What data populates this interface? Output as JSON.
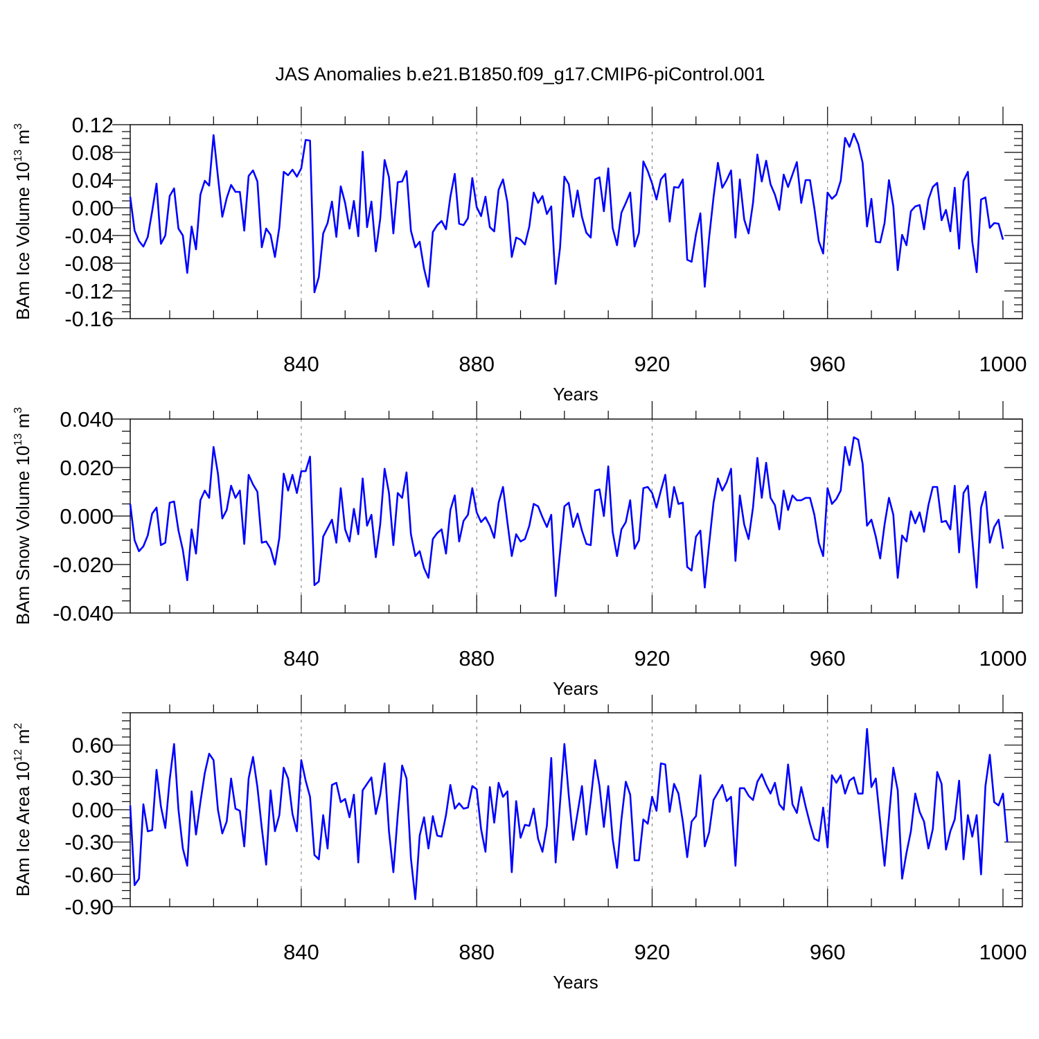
{
  "title": "JAS Anomalies b.e21.B1850.f09_g17.CMIP6-piControl.001",
  "line_color": "#0000ff",
  "grid_color": "#777777",
  "chart_data": [
    {
      "type": "line",
      "ylabel": {
        "main": "BAm Ice Volume 10",
        "exp": "13",
        "unit": " m",
        "unit_exp": "3"
      },
      "xlabel": "Years",
      "xlim": [
        801,
        1000
      ],
      "ylim": [
        -0.16,
        0.12
      ],
      "yticks": [
        -0.16,
        -0.12,
        -0.08,
        -0.04,
        0.0,
        0.04,
        0.08,
        0.12
      ],
      "ytick_labels": [
        "-0.16",
        "-0.12",
        "-0.08",
        "-0.04",
        "0.00",
        "0.04",
        "0.08",
        "0.12"
      ],
      "xticks": [
        840,
        880,
        920,
        960,
        1000
      ],
      "xtick_labels": [
        "840",
        "880",
        "920",
        "960",
        "1000"
      ],
      "x_start": 801,
      "values": [
        0.016,
        -0.033,
        -0.048,
        -0.056,
        -0.042,
        -0.005,
        0.035,
        -0.052,
        -0.04,
        0.017,
        0.028,
        -0.03,
        -0.04,
        -0.094,
        -0.027,
        -0.06,
        0.019,
        0.039,
        0.032,
        0.105,
        0.045,
        -0.013,
        0.014,
        0.033,
        0.023,
        0.023,
        -0.033,
        0.046,
        0.054,
        0.038,
        -0.057,
        -0.03,
        -0.039,
        -0.071,
        -0.028,
        0.052,
        0.047,
        0.055,
        0.045,
        0.057,
        0.098,
        0.097,
        -0.122,
        -0.1,
        -0.037,
        -0.022,
        0.009,
        -0.042,
        0.031,
        0.007,
        -0.03,
        0.01,
        -0.041,
        0.081,
        -0.028,
        0.009,
        -0.063,
        -0.016,
        0.069,
        0.044,
        -0.037,
        0.037,
        0.038,
        0.053,
        -0.033,
        -0.057,
        -0.049,
        -0.088,
        -0.114,
        -0.035,
        -0.025,
        -0.019,
        -0.031,
        0.016,
        0.049,
        -0.023,
        -0.025,
        -0.015,
        0.043,
        0.001,
        -0.012,
        0.016,
        -0.028,
        -0.034,
        0.026,
        0.041,
        0.008,
        -0.071,
        -0.043,
        -0.046,
        -0.053,
        -0.027,
        0.022,
        0.007,
        0.017,
        -0.009,
        0.002,
        -0.11,
        -0.058,
        0.045,
        0.034,
        -0.013,
        0.025,
        -0.013,
        -0.036,
        -0.043,
        0.041,
        0.044,
        -0.005,
        0.057,
        -0.029,
        -0.054,
        -0.007,
        0.007,
        0.022,
        -0.056,
        -0.036,
        0.067,
        0.053,
        0.035,
        0.012,
        0.041,
        0.049,
        -0.02,
        0.03,
        0.029,
        0.041,
        -0.075,
        -0.078,
        -0.038,
        -0.008,
        -0.114,
        -0.043,
        0.015,
        0.065,
        0.029,
        0.04,
        0.054,
        -0.043,
        0.041,
        -0.017,
        -0.037,
        0.007,
        0.077,
        0.038,
        0.068,
        0.034,
        0.019,
        -0.003,
        0.048,
        0.03,
        0.048,
        0.066,
        0.007,
        0.04,
        0.04,
        -0.001,
        -0.048,
        -0.066,
        0.022,
        0.013,
        0.019,
        0.039,
        0.101,
        0.088,
        0.107,
        0.092,
        0.065,
        -0.027,
        0.013,
        -0.049,
        -0.05,
        -0.022,
        0.04,
        0.002,
        -0.09,
        -0.039,
        -0.054,
        -0.005,
        0.002,
        0.004,
        -0.031,
        0.012,
        0.03,
        0.036,
        -0.018,
        -0.003,
        -0.034,
        0.029,
        -0.059,
        0.039,
        0.052,
        -0.049,
        -0.093,
        0.012,
        0.015,
        -0.029,
        -0.022,
        -0.023,
        -0.046
      ]
    },
    {
      "type": "line",
      "ylabel": {
        "main": "BAm Snow Volume 10",
        "exp": "13",
        "unit": " m",
        "unit_exp": "3"
      },
      "xlabel": "Years",
      "xlim": [
        801,
        1000
      ],
      "ylim": [
        -0.04,
        0.04
      ],
      "yticks": [
        -0.04,
        -0.02,
        0.0,
        0.02,
        0.04
      ],
      "ytick_labels": [
        "-0.040",
        "-0.020",
        "0.000",
        "0.020",
        "0.040"
      ],
      "xticks": [
        840,
        880,
        920,
        960,
        1000
      ],
      "xtick_labels": [
        "840",
        "880",
        "920",
        "960",
        "1000"
      ],
      "x_start": 801,
      "values": [
        0.005,
        -0.01,
        -0.0145,
        -0.0125,
        -0.008,
        0.001,
        0.0035,
        -0.012,
        -0.011,
        0.0055,
        0.006,
        -0.006,
        -0.014,
        -0.0265,
        -0.0055,
        -0.0155,
        0.0065,
        0.0105,
        0.0075,
        0.0285,
        0.0175,
        -0.001,
        0.0025,
        0.0125,
        0.0075,
        0.0105,
        -0.0115,
        0.017,
        0.013,
        0.01,
        -0.011,
        -0.0105,
        -0.0135,
        -0.02,
        -0.009,
        0.0175,
        0.0105,
        0.017,
        0.0095,
        0.0185,
        0.0185,
        0.0245,
        -0.0285,
        -0.027,
        -0.0085,
        -0.005,
        -0.0015,
        -0.011,
        0.0115,
        -0.0055,
        -0.0105,
        0.003,
        -0.0075,
        0.0155,
        -0.004,
        0.0005,
        -0.017,
        -0.0035,
        0.0195,
        0.0095,
        -0.012,
        0.0095,
        0.0075,
        0.018,
        -0.0075,
        -0.0165,
        -0.0145,
        -0.0215,
        -0.0255,
        -0.0095,
        -0.007,
        -0.0055,
        -0.0155,
        0.0025,
        0.0085,
        -0.0105,
        -0.002,
        0.0005,
        0.0115,
        0.0015,
        -0.0025,
        -0.0005,
        -0.004,
        -0.009,
        0.0055,
        0.012,
        -0.0025,
        -0.0165,
        -0.0075,
        -0.0105,
        -0.0095,
        -0.004,
        0.005,
        0.004,
        -0.0005,
        -0.0045,
        0.0005,
        -0.033,
        -0.015,
        0.004,
        0.0055,
        -0.0045,
        0.001,
        -0.006,
        -0.0115,
        -0.012,
        0.0105,
        0.011,
        0.0,
        0.0205,
        -0.0065,
        -0.0165,
        -0.0055,
        -0.0025,
        0.0065,
        -0.0135,
        -0.01,
        0.0115,
        0.012,
        0.0095,
        0.0035,
        0.0105,
        0.017,
        -0.0005,
        0.012,
        0.005,
        0.0055,
        -0.021,
        -0.0225,
        -0.0085,
        -0.006,
        -0.0295,
        -0.0115,
        0.0055,
        0.0155,
        0.0105,
        0.014,
        0.0195,
        -0.0185,
        0.0085,
        -0.0035,
        -0.0095,
        0.0035,
        0.024,
        0.0075,
        0.022,
        0.0075,
        0.0045,
        -0.0055,
        0.0105,
        0.0025,
        0.0085,
        0.0065,
        0.0065,
        0.0075,
        0.0075,
        0.0005,
        -0.011,
        -0.0165,
        0.0115,
        0.005,
        0.007,
        0.0105,
        0.0285,
        0.021,
        0.0325,
        0.0315,
        0.0215,
        -0.004,
        -0.0015,
        -0.0085,
        -0.0175,
        -0.0035,
        0.0075,
        0.0005,
        -0.0255,
        -0.008,
        -0.0105,
        0.002,
        -0.003,
        0.0015,
        -0.0065,
        0.0045,
        0.012,
        0.012,
        -0.0025,
        -0.002,
        -0.0055,
        0.0125,
        -0.015,
        0.0095,
        0.0125,
        -0.0095,
        -0.0295,
        0.0035,
        0.01,
        -0.011,
        -0.0045,
        -0.0015,
        -0.0135
      ]
    },
    {
      "type": "line",
      "ylabel": {
        "main": "BAm Ice Area 10",
        "exp": "12",
        "unit": " m",
        "unit_exp": "2"
      },
      "xlabel": "Years",
      "xlim": [
        801,
        1000
      ],
      "ylim": [
        -0.9,
        0.9
      ],
      "yticks": [
        -0.9,
        -0.6,
        -0.3,
        0.0,
        0.3,
        0.6
      ],
      "ytick_labels": [
        "-0.90",
        "-0.60",
        "-0.30",
        "0.00",
        "0.30",
        "0.60"
      ],
      "xticks": [
        840,
        880,
        920,
        960,
        1000
      ],
      "xtick_labels": [
        "840",
        "880",
        "920",
        "960",
        "1000"
      ],
      "x_start": 801,
      "values": [
        0.04,
        -0.7,
        -0.64,
        0.05,
        -0.2,
        -0.19,
        0.37,
        0.03,
        -0.17,
        0.28,
        0.61,
        0.0,
        -0.36,
        -0.52,
        0.17,
        -0.23,
        0.07,
        0.34,
        0.52,
        0.46,
        0.0,
        -0.22,
        -0.11,
        0.29,
        0.01,
        -0.01,
        -0.34,
        0.29,
        0.49,
        0.21,
        -0.17,
        -0.51,
        0.18,
        -0.2,
        -0.05,
        0.39,
        0.29,
        -0.04,
        -0.2,
        0.46,
        0.27,
        0.12,
        -0.42,
        -0.46,
        -0.05,
        -0.36,
        0.23,
        0.25,
        0.07,
        0.1,
        -0.07,
        0.14,
        -0.49,
        0.18,
        0.24,
        0.3,
        -0.04,
        0.14,
        0.43,
        -0.2,
        -0.58,
        -0.05,
        0.41,
        0.29,
        -0.45,
        -0.83,
        -0.24,
        -0.07,
        -0.36,
        -0.06,
        -0.24,
        -0.25,
        -0.05,
        0.23,
        0.01,
        0.06,
        0.01,
        0.02,
        0.22,
        0.19,
        -0.18,
        -0.39,
        0.21,
        -0.12,
        0.25,
        0.12,
        0.17,
        -0.58,
        0.08,
        -0.26,
        -0.14,
        -0.15,
        0.01,
        -0.27,
        -0.39,
        -0.15,
        0.48,
        -0.49,
        0.06,
        0.61,
        0.13,
        -0.28,
        -0.03,
        0.22,
        -0.23,
        0.09,
        0.46,
        0.22,
        -0.16,
        0.22,
        -0.27,
        -0.54,
        -0.09,
        0.26,
        0.14,
        -0.47,
        -0.47,
        -0.09,
        -0.13,
        0.12,
        -0.01,
        0.43,
        0.42,
        -0.02,
        0.24,
        0.15,
        -0.11,
        -0.44,
        -0.11,
        -0.06,
        0.32,
        -0.34,
        -0.21,
        0.09,
        0.16,
        0.23,
        0.08,
        0.12,
        -0.52,
        0.2,
        0.2,
        0.13,
        0.09,
        0.26,
        0.33,
        0.23,
        0.15,
        0.25,
        0.05,
        0.0,
        0.42,
        0.05,
        -0.03,
        0.21,
        0.03,
        -0.13,
        -0.27,
        -0.29,
        0.02,
        -0.35,
        0.32,
        0.25,
        0.32,
        0.15,
        0.27,
        0.3,
        0.15,
        0.15,
        0.75,
        0.21,
        0.29,
        -0.11,
        -0.52,
        -0.07,
        0.39,
        0.18,
        -0.64,
        -0.4,
        -0.2,
        0.15,
        -0.02,
        -0.11,
        -0.36,
        -0.18,
        0.35,
        0.24,
        -0.37,
        -0.2,
        -0.09,
        0.27,
        -0.46,
        -0.05,
        -0.25,
        -0.05,
        -0.6,
        0.22,
        0.51,
        0.07,
        0.04,
        0.15,
        -0.3
      ]
    }
  ]
}
